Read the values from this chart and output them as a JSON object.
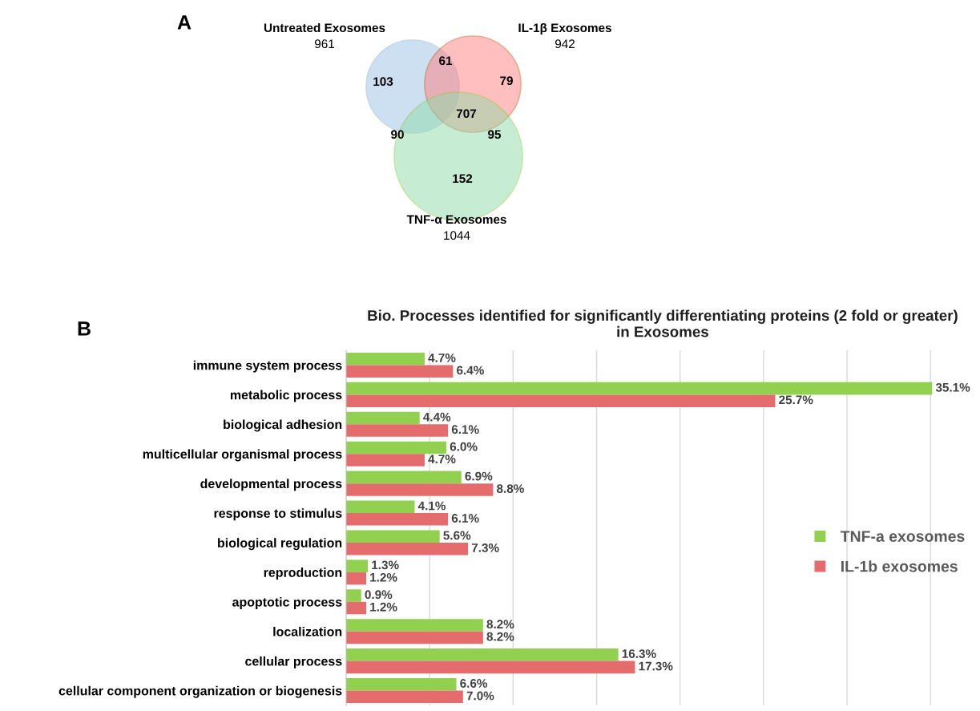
{
  "chart_data": [
    {
      "type": "other",
      "annotations": [
        "A",
        "Untreated Exosomes",
        "961",
        "IL-1β Exosomes",
        "942",
        "TNF-α Exosomes",
        "1044",
        "103",
        "61",
        "79",
        "707",
        "90",
        "95",
        "152"
      ],
      "series": [
        {
          "color": "#9dc3e6"
        },
        {
          "color": "#ff8080"
        },
        {
          "color": "#8fdca8"
        }
      ]
    },
    {
      "type": "bar",
      "orientation": "horizontal",
      "title": "Bio. Processes identified for significantly differentiating proteins (2 fold or greater)\nin Exosomes",
      "annotations": [
        "B"
      ],
      "categories": [
        "immune system process",
        "metabolic process",
        "biological adhesion",
        "multicellular organismal process",
        "developmental process",
        "response to stimulus",
        "biological regulation",
        "reproduction",
        "apoptotic process",
        "localization",
        "cellular process",
        "cellular component organization or biogenesis"
      ],
      "series": [
        {
          "name": "TNF-a exosomes",
          "color": "#92d050",
          "values": [
            4.7,
            35.1,
            4.4,
            6.0,
            6.9,
            4.1,
            5.6,
            1.3,
            0.9,
            8.2,
            16.3,
            6.6
          ],
          "value_labels": [
            "4.7%",
            "35.1%",
            "4.4%",
            "6.0%",
            "6.9%",
            "4.1%",
            "5.6%",
            "1.3%",
            "0.9%",
            "8.2%",
            "16.3%",
            "6.6%"
          ]
        },
        {
          "name": "IL-1b exosomes",
          "color": "#e46c6c",
          "values": [
            6.4,
            25.7,
            6.1,
            4.7,
            8.8,
            6.1,
            7.3,
            1.2,
            1.2,
            8.2,
            17.3,
            7.0
          ],
          "value_labels": [
            "6.4%",
            "25.7%",
            "6.1%",
            "4.7%",
            "8.8%",
            "6.1%",
            "7.3%",
            "1.2%",
            "1.2%",
            "8.2%",
            "17.3%",
            "7.0%"
          ]
        }
      ],
      "xticks": [
        {
          "value": 5,
          "label": null
        },
        {
          "value": 10,
          "label": null
        },
        {
          "value": 15,
          "label": null
        },
        {
          "value": 20,
          "label": null
        },
        {
          "value": 25,
          "label": null
        },
        {
          "value": 30,
          "label": null
        },
        {
          "value": 35,
          "label": null
        }
      ],
      "grid": "x",
      "tick_labels": "y",
      "legend": "right"
    }
  ]
}
